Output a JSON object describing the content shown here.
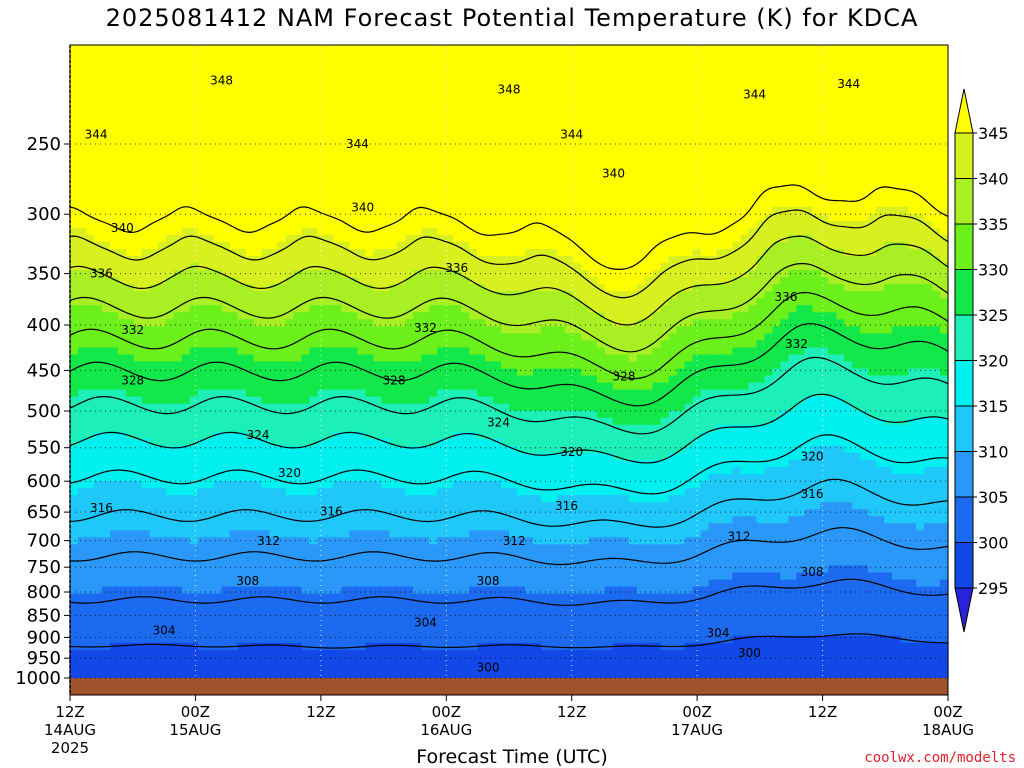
{
  "title": "2025081412 NAM Forecast Potential Temperature (K) for KDCA",
  "credit": "coolwx.com/modelts",
  "chart_data": {
    "type": "filled-contour",
    "title": "2025081412 NAM Forecast Potential Temperature (K) for KDCA",
    "xlabel": "Forecast Time (UTC)",
    "ylabel": "",
    "y_axis": "pressure (hPa), log scale, decreasing upward",
    "ylim": [
      1000,
      200
    ],
    "y_ticks": [
      1000,
      950,
      900,
      850,
      800,
      750,
      700,
      650,
      600,
      550,
      500,
      450,
      400,
      350,
      300,
      250
    ],
    "x_ticks": [
      {
        "hours": 0,
        "line1": "12Z",
        "line2": "14AUG",
        "line3": "2025"
      },
      {
        "hours": 12,
        "line1": "00Z",
        "line2": "15AUG",
        "line3": ""
      },
      {
        "hours": 24,
        "line1": "12Z",
        "line2": "",
        "line3": ""
      },
      {
        "hours": 36,
        "line1": "00Z",
        "line2": "16AUG",
        "line3": ""
      },
      {
        "hours": 48,
        "line1": "12Z",
        "line2": "",
        "line3": ""
      },
      {
        "hours": 60,
        "line1": "00Z",
        "line2": "17AUG",
        "line3": ""
      },
      {
        "hours": 72,
        "line1": "12Z",
        "line2": "",
        "line3": ""
      },
      {
        "hours": 84,
        "line1": "00Z",
        "line2": "18AUG",
        "line3": ""
      }
    ],
    "xlim": [
      0,
      84
    ],
    "grid": true,
    "colorbar": {
      "levels": [
        295,
        300,
        305,
        310,
        315,
        320,
        325,
        330,
        335,
        340,
        345
      ],
      "colors": [
        "#2a22d8",
        "#1248e8",
        "#1c6af0",
        "#2a98f8",
        "#1fc8f8",
        "#00f0f0",
        "#1cf0b8",
        "#12e84a",
        "#6cf01c",
        "#a8f024",
        "#d8f020",
        "#ffff00"
      ],
      "position": "right"
    },
    "contour_values": [
      300,
      304,
      308,
      312,
      316,
      320,
      324,
      328,
      332,
      336,
      340,
      344,
      348
    ],
    "contour_labels": [
      {
        "value": 348,
        "hours": 14.5,
        "p": 212
      },
      {
        "value": 348,
        "hours": 42,
        "p": 217
      },
      {
        "value": 344,
        "hours": 2.5,
        "p": 244
      },
      {
        "value": 344,
        "hours": 27.5,
        "p": 250
      },
      {
        "value": 344,
        "hours": 48,
        "p": 244
      },
      {
        "value": 344,
        "hours": 65.5,
        "p": 220
      },
      {
        "value": 344,
        "hours": 74.5,
        "p": 214
      },
      {
        "value": 340,
        "hours": 5,
        "p": 311
      },
      {
        "value": 340,
        "hours": 28,
        "p": 295
      },
      {
        "value": 340,
        "hours": 52,
        "p": 270
      },
      {
        "value": 336,
        "hours": 3,
        "p": 350
      },
      {
        "value": 336,
        "hours": 37,
        "p": 345
      },
      {
        "value": 336,
        "hours": 68.5,
        "p": 372
      },
      {
        "value": 332,
        "hours": 6,
        "p": 405
      },
      {
        "value": 332,
        "hours": 34,
        "p": 403
      },
      {
        "value": 332,
        "hours": 69.5,
        "p": 420
      },
      {
        "value": 328,
        "hours": 6,
        "p": 462
      },
      {
        "value": 328,
        "hours": 31,
        "p": 462
      },
      {
        "value": 328,
        "hours": 53,
        "p": 457
      },
      {
        "value": 324,
        "hours": 18,
        "p": 532
      },
      {
        "value": 324,
        "hours": 41,
        "p": 515
      },
      {
        "value": 320,
        "hours": 21,
        "p": 587
      },
      {
        "value": 320,
        "hours": 48,
        "p": 556
      },
      {
        "value": 320,
        "hours": 71,
        "p": 563
      },
      {
        "value": 316,
        "hours": 3,
        "p": 643
      },
      {
        "value": 316,
        "hours": 25,
        "p": 649
      },
      {
        "value": 316,
        "hours": 47.5,
        "p": 640
      },
      {
        "value": 316,
        "hours": 71,
        "p": 620
      },
      {
        "value": 312,
        "hours": 19,
        "p": 701
      },
      {
        "value": 312,
        "hours": 42.5,
        "p": 701
      },
      {
        "value": 312,
        "hours": 64,
        "p": 693
      },
      {
        "value": 308,
        "hours": 17,
        "p": 777
      },
      {
        "value": 308,
        "hours": 40,
        "p": 777
      },
      {
        "value": 308,
        "hours": 71,
        "p": 759
      },
      {
        "value": 304,
        "hours": 9,
        "p": 884
      },
      {
        "value": 304,
        "hours": 34,
        "p": 866
      },
      {
        "value": 304,
        "hours": 62,
        "p": 890
      },
      {
        "value": 300,
        "hours": 40,
        "p": 973
      },
      {
        "value": 300,
        "hours": 65,
        "p": 937
      }
    ]
  }
}
